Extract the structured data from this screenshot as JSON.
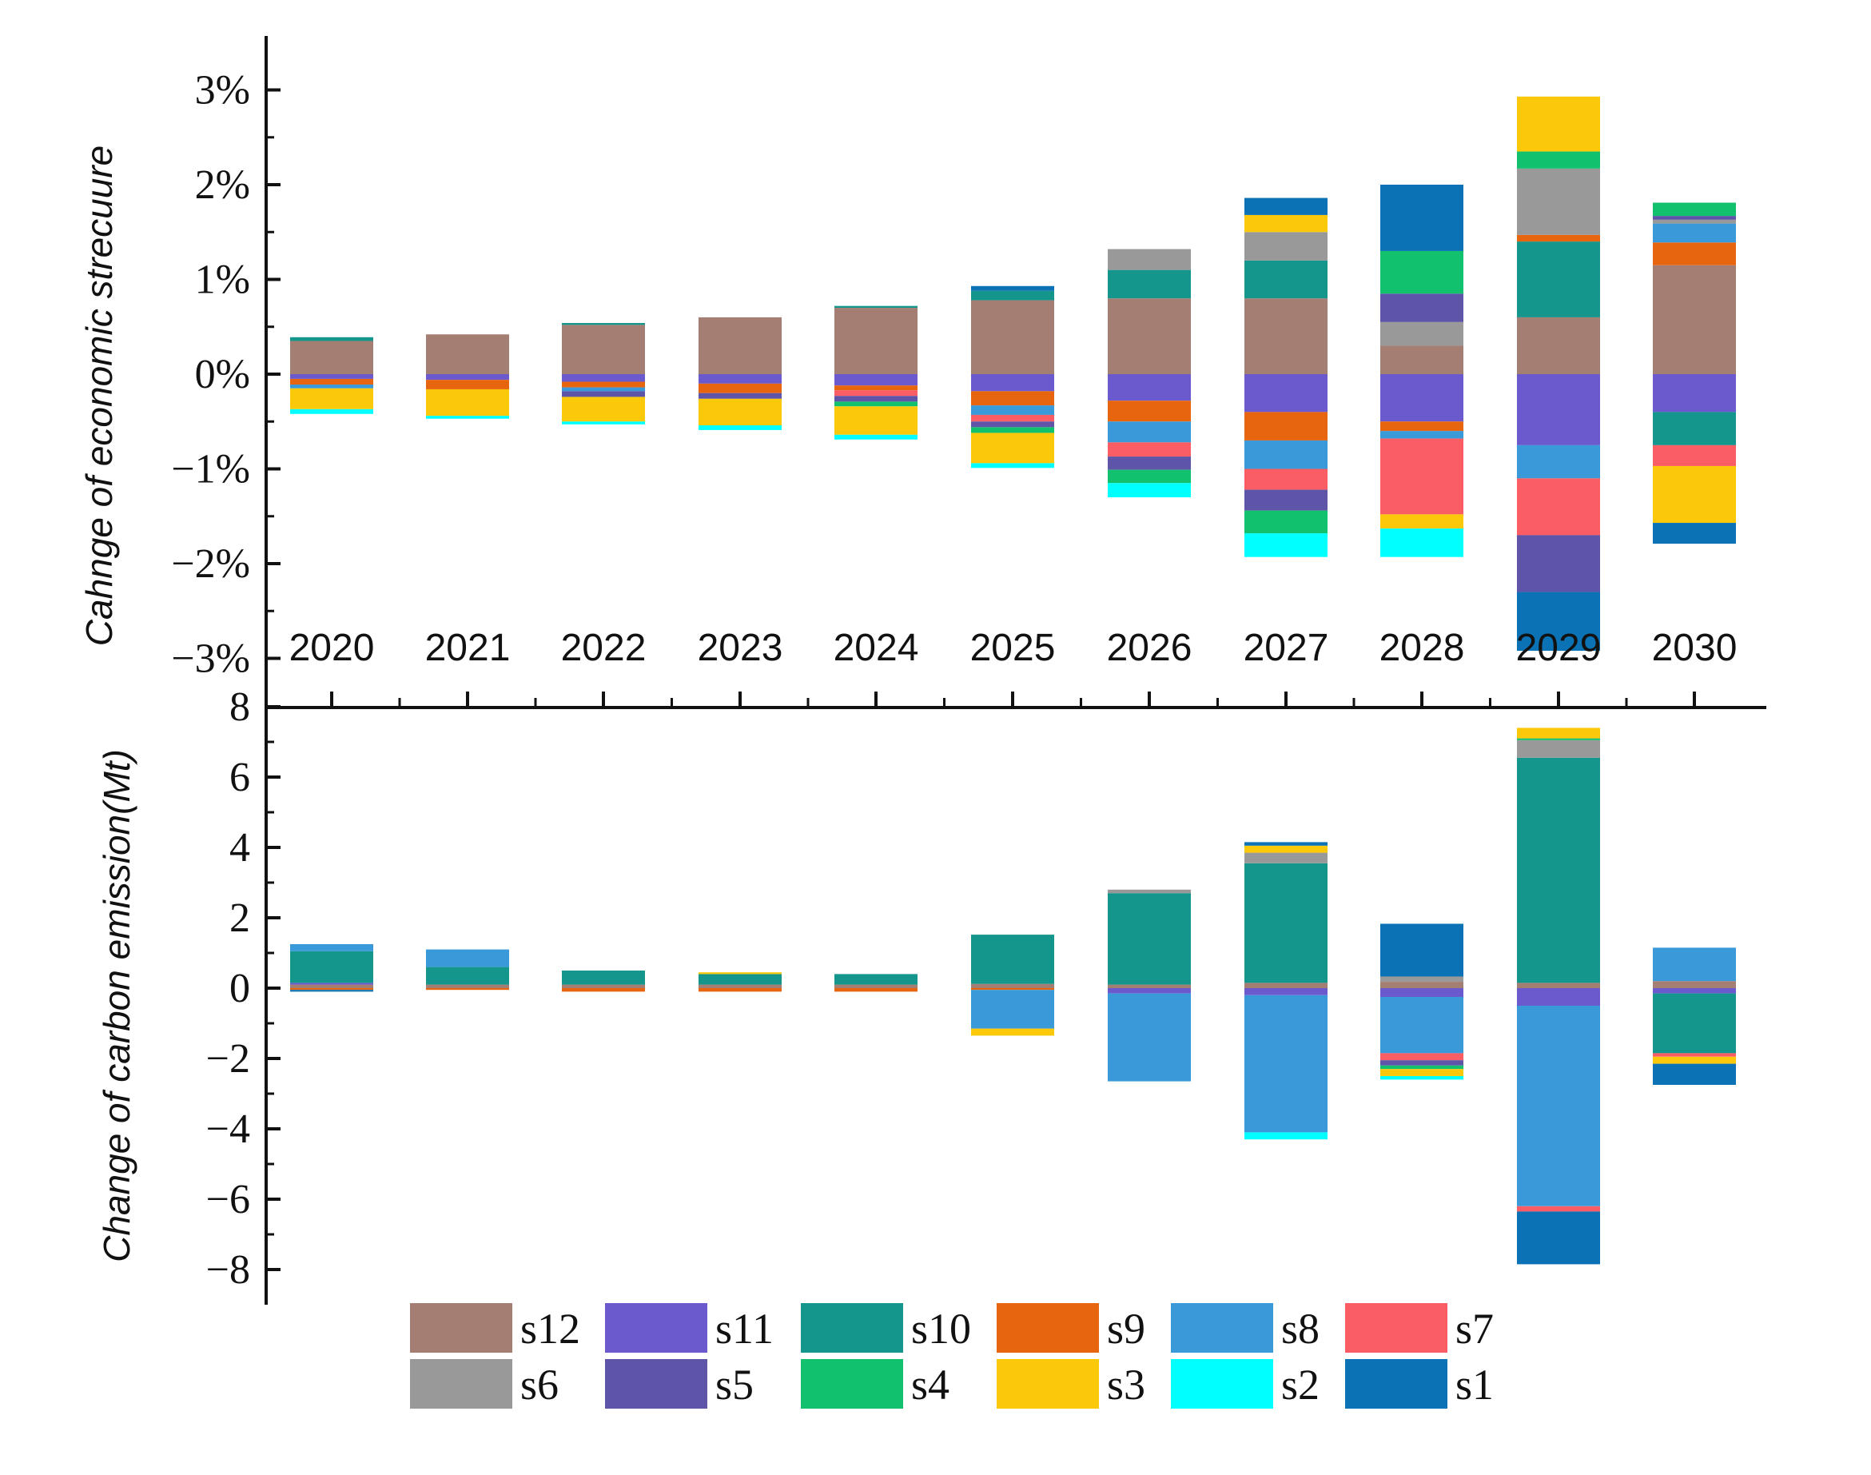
{
  "chart_data": [
    {
      "type": "bar",
      "stacked": true,
      "ylabel": "Cahnge of economic strecuure",
      "ylim": [
        -3,
        3.5
      ],
      "yticks": [
        "3%",
        "2%",
        "1%",
        "0%",
        "−1%",
        "−2%",
        "−3%"
      ],
      "ytick_values": [
        3,
        2,
        1,
        0,
        -1,
        -2,
        -3
      ],
      "categories": [
        "2020",
        "2021",
        "2022",
        "2023",
        "2024",
        "2025",
        "2026",
        "2027",
        "2028",
        "2029",
        "2030"
      ],
      "series": [
        {
          "name": "s12",
          "color": "#A57E73",
          "values": [
            0.35,
            0.42,
            0.52,
            0.6,
            0.7,
            0.78,
            0.8,
            0.8,
            0.3,
            0.6,
            1.15
          ]
        },
        {
          "name": "s11",
          "color": "#6A5ACD",
          "values": [
            -0.05,
            -0.06,
            -0.08,
            -0.1,
            -0.12,
            -0.18,
            -0.28,
            -0.4,
            -0.5,
            -0.75,
            -0.4
          ]
        },
        {
          "name": "s10",
          "color": "#14968C",
          "values": [
            0.04,
            0,
            0.02,
            0,
            0.02,
            0.1,
            0.3,
            0.4,
            0,
            0.8,
            -0.35
          ]
        },
        {
          "name": "s9",
          "color": "#E8650F",
          "values": [
            -0.06,
            -0.1,
            -0.06,
            -0.1,
            -0.05,
            -0.15,
            -0.22,
            -0.3,
            -0.1,
            0.07,
            0.24
          ]
        },
        {
          "name": "s8",
          "color": "#3A9AD9",
          "values": [
            -0.04,
            0,
            -0.04,
            0,
            0,
            -0.1,
            -0.22,
            -0.3,
            -0.08,
            -0.35,
            0.2
          ]
        },
        {
          "name": "s7",
          "color": "#FA5E64",
          "values": [
            0,
            0,
            0,
            0,
            -0.06,
            -0.07,
            -0.15,
            -0.22,
            -0.8,
            -0.6,
            -0.22
          ]
        },
        {
          "name": "s6",
          "color": "#999999",
          "values": [
            0,
            0,
            0,
            0,
            0,
            0,
            0.22,
            0.3,
            0.25,
            0.7,
            0.04
          ]
        },
        {
          "name": "s5",
          "color": "#5E54A8",
          "values": [
            0,
            0,
            -0.06,
            -0.06,
            -0.06,
            -0.06,
            -0.14,
            -0.22,
            0.3,
            -0.6,
            0.04
          ]
        },
        {
          "name": "s4",
          "color": "#12C16E",
          "values": [
            0,
            0,
            0,
            0,
            -0.05,
            -0.06,
            -0.14,
            -0.24,
            0.45,
            0.18,
            0.14
          ]
        },
        {
          "name": "s3",
          "color": "#FCC80A",
          "values": [
            -0.22,
            -0.28,
            -0.26,
            -0.28,
            -0.3,
            -0.32,
            0,
            0.18,
            -0.15,
            0.58,
            -0.6
          ]
        },
        {
          "name": "s2",
          "color": "#00FFFF",
          "values": [
            -0.05,
            -0.03,
            -0.03,
            -0.05,
            -0.05,
            -0.05,
            -0.15,
            -0.25,
            -0.3,
            0,
            0
          ]
        },
        {
          "name": "s1",
          "color": "#0A72B5",
          "values": [
            0,
            0,
            0,
            0,
            0,
            0.05,
            0,
            0.18,
            0.7,
            -0.62,
            -0.22
          ]
        }
      ]
    },
    {
      "type": "bar",
      "stacked": true,
      "ylabel": "Change of carbon emission(Mt)",
      "ylim": [
        -8.5,
        8
      ],
      "yticks": [
        "8",
        "6",
        "4",
        "2",
        "0",
        "−2",
        "−4",
        "−6",
        "−8"
      ],
      "ytick_values": [
        8,
        6,
        4,
        2,
        0,
        -2,
        -4,
        -6,
        -8
      ],
      "categories": [
        "2020",
        "2021",
        "2022",
        "2023",
        "2024",
        "2025",
        "2026",
        "2027",
        "2028",
        "2029",
        "2030"
      ],
      "series": [
        {
          "name": "s12",
          "color": "#A57E73",
          "values": [
            0.1,
            0.1,
            0.1,
            0.1,
            0.1,
            0.12,
            0.1,
            0.15,
            0.18,
            0.15,
            0.2
          ]
        },
        {
          "name": "s11",
          "color": "#6A5ACD",
          "values": [
            0.05,
            0,
            0,
            0,
            0,
            0,
            -0.15,
            -0.2,
            -0.25,
            -0.5,
            -0.15
          ]
        },
        {
          "name": "s10",
          "color": "#14968C",
          "values": [
            0.9,
            0.5,
            0.4,
            0.3,
            0.3,
            1.4,
            2.6,
            3.4,
            0,
            6.4,
            -1.7
          ]
        },
        {
          "name": "s9",
          "color": "#E8650F",
          "values": [
            -0.05,
            -0.05,
            -0.1,
            -0.1,
            -0.1,
            -0.05,
            0,
            0,
            0,
            0,
            0
          ]
        },
        {
          "name": "s8",
          "color": "#3A9AD9",
          "values": [
            0.2,
            0.5,
            0,
            0,
            0,
            -1.1,
            -2.5,
            -3.9,
            -1.6,
            -5.7,
            0.95
          ]
        },
        {
          "name": "s7",
          "color": "#FA5E64",
          "values": [
            0,
            0,
            0,
            0,
            0,
            0,
            0,
            0,
            -0.2,
            -0.15,
            -0.1
          ]
        },
        {
          "name": "s6",
          "color": "#999999",
          "values": [
            0,
            0,
            0,
            0,
            0,
            0,
            0.1,
            0.3,
            0.15,
            0.5,
            0
          ]
        },
        {
          "name": "s5",
          "color": "#5E54A8",
          "values": [
            0,
            0,
            0,
            0,
            0,
            0,
            0,
            0,
            -0.15,
            0,
            0
          ]
        },
        {
          "name": "s4",
          "color": "#12C16E",
          "values": [
            0,
            0,
            0,
            0,
            0,
            0,
            0,
            0,
            -0.1,
            0.05,
            0
          ]
        },
        {
          "name": "s3",
          "color": "#FCC80A",
          "values": [
            0,
            0,
            0,
            0.05,
            0,
            -0.2,
            0,
            0.2,
            -0.2,
            0.3,
            -0.2
          ]
        },
        {
          "name": "s2",
          "color": "#00FFFF",
          "values": [
            0,
            0,
            0,
            0,
            0,
            0,
            0,
            -0.2,
            -0.1,
            0,
            0
          ]
        },
        {
          "name": "s1",
          "color": "#0A72B5",
          "values": [
            -0.05,
            0,
            0,
            0,
            0,
            0,
            0,
            0.1,
            1.5,
            -1.5,
            -0.6
          ]
        }
      ]
    }
  ],
  "legend": [
    {
      "label": "s12",
      "color": "#A57E73"
    },
    {
      "label": "s11",
      "color": "#6A5ACD"
    },
    {
      "label": "s10",
      "color": "#14968C"
    },
    {
      "label": "s9",
      "color": "#E8650F"
    },
    {
      "label": "s8",
      "color": "#3A9AD9"
    },
    {
      "label": "s7",
      "color": "#FA5E64"
    },
    {
      "label": "s6",
      "color": "#999999"
    },
    {
      "label": "s5",
      "color": "#5E54A8"
    },
    {
      "label": "s4",
      "color": "#12C16E"
    },
    {
      "label": "s3",
      "color": "#FCC80A"
    },
    {
      "label": "s2",
      "color": "#00FFFF"
    },
    {
      "label": "s1",
      "color": "#0A72B5"
    }
  ]
}
